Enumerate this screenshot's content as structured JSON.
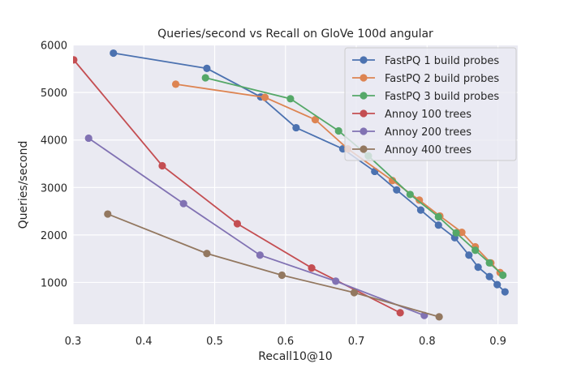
{
  "chart_data": {
    "type": "line",
    "title": "Queries/second vs Recall on GloVe 100d angular",
    "xlabel": "Recall10@10",
    "ylabel": "Queries/second",
    "xlim": [
      0.3,
      0.928
    ],
    "ylim": [
      120,
      6010
    ],
    "x_ticks": [
      0.3,
      0.4,
      0.5,
      0.6,
      0.7,
      0.8,
      0.9
    ],
    "x_tick_labels": [
      "0.3",
      "0.4",
      "0.5",
      "0.6",
      "0.7",
      "0.8",
      "0.9"
    ],
    "y_ticks": [
      1000,
      2000,
      3000,
      4000,
      5000,
      6000
    ],
    "y_tick_labels": [
      "1000",
      "2000",
      "3000",
      "4000",
      "5000",
      "6000"
    ],
    "grid": true,
    "legend_position": "top-right",
    "background": "#eaeaf2",
    "series": [
      {
        "name": "FastPQ 1 build probes",
        "color": "#4c72b0",
        "x": [
          0.357,
          0.489,
          0.565,
          0.615,
          0.681,
          0.726,
          0.757,
          0.791,
          0.816,
          0.839,
          0.859,
          0.872,
          0.888,
          0.899,
          0.91
        ],
        "y": [
          5830,
          5508,
          4908,
          4259,
          3814,
          3339,
          2949,
          2525,
          2208,
          1942,
          1576,
          1322,
          1124,
          954,
          802
        ]
      },
      {
        "name": "FastPQ 2 build probes",
        "color": "#dd8452",
        "x": [
          0.445,
          0.571,
          0.642,
          0.688,
          0.751,
          0.789,
          0.818,
          0.849,
          0.868,
          0.89,
          0.903
        ],
        "y": [
          5175,
          4898,
          4429,
          3814,
          3146,
          2734,
          2400,
          2056,
          1751,
          1412,
          1208
        ]
      },
      {
        "name": "FastPQ 3 build probes",
        "color": "#55a868",
        "x": [
          0.487,
          0.607,
          0.675,
          0.717,
          0.776,
          0.816,
          0.841,
          0.868,
          0.888,
          0.907
        ],
        "y": [
          5310,
          4869,
          4192,
          3666,
          2853,
          2383,
          2044,
          1678,
          1412,
          1153
        ]
      },
      {
        "name": "Annoy 100 trees",
        "color": "#c44e52",
        "x": [
          0.301,
          0.426,
          0.532,
          0.637,
          0.762
        ],
        "y": [
          5688,
          3458,
          2237,
          1305,
          361
        ]
      },
      {
        "name": "Annoy 200 trees",
        "color": "#8172b3",
        "x": [
          0.322,
          0.456,
          0.564,
          0.671,
          0.796
        ],
        "y": [
          4039,
          2661,
          1576,
          1027,
          305
        ]
      },
      {
        "name": "Annoy 400 trees",
        "color": "#937860",
        "x": [
          0.349,
          0.489,
          0.595,
          0.697,
          0.817
        ],
        "y": [
          2441,
          1610,
          1153,
          785,
          276
        ]
      }
    ]
  }
}
